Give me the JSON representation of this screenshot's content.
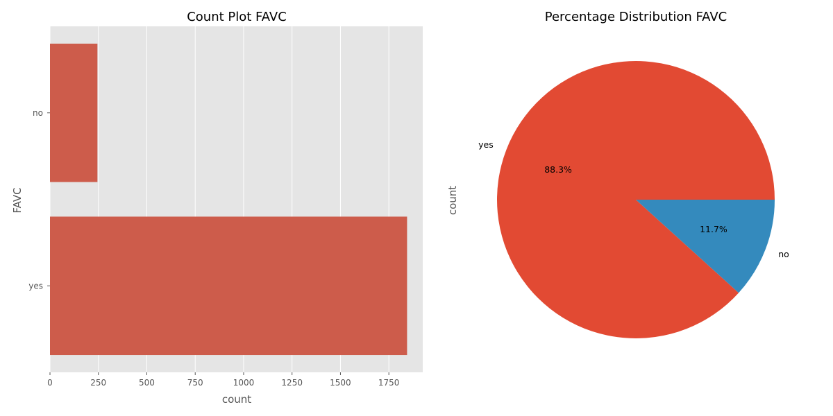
{
  "chart_data": [
    {
      "type": "bar",
      "orientation": "horizontal",
      "title": "Count Plot FAVC",
      "xlabel": "count",
      "ylabel": "FAVC",
      "categories": [
        "no",
        "yes"
      ],
      "values": [
        245,
        1844
      ],
      "xticks": [
        "0",
        "250",
        "500",
        "750",
        "1000",
        "1250",
        "1500",
        "1750"
      ],
      "xlim": [
        0,
        1925
      ],
      "grid": true,
      "bar_color": "#cd5c4b",
      "background": "#e5e5e5"
    },
    {
      "type": "pie",
      "title": "Percentage Distribution FAVC",
      "ylabel": "count",
      "labels": [
        "yes",
        "no"
      ],
      "values": [
        1844,
        245
      ],
      "percent_labels": [
        "88.3%",
        "11.7%"
      ],
      "colors": [
        "#e24a33",
        "#348abd"
      ]
    }
  ]
}
